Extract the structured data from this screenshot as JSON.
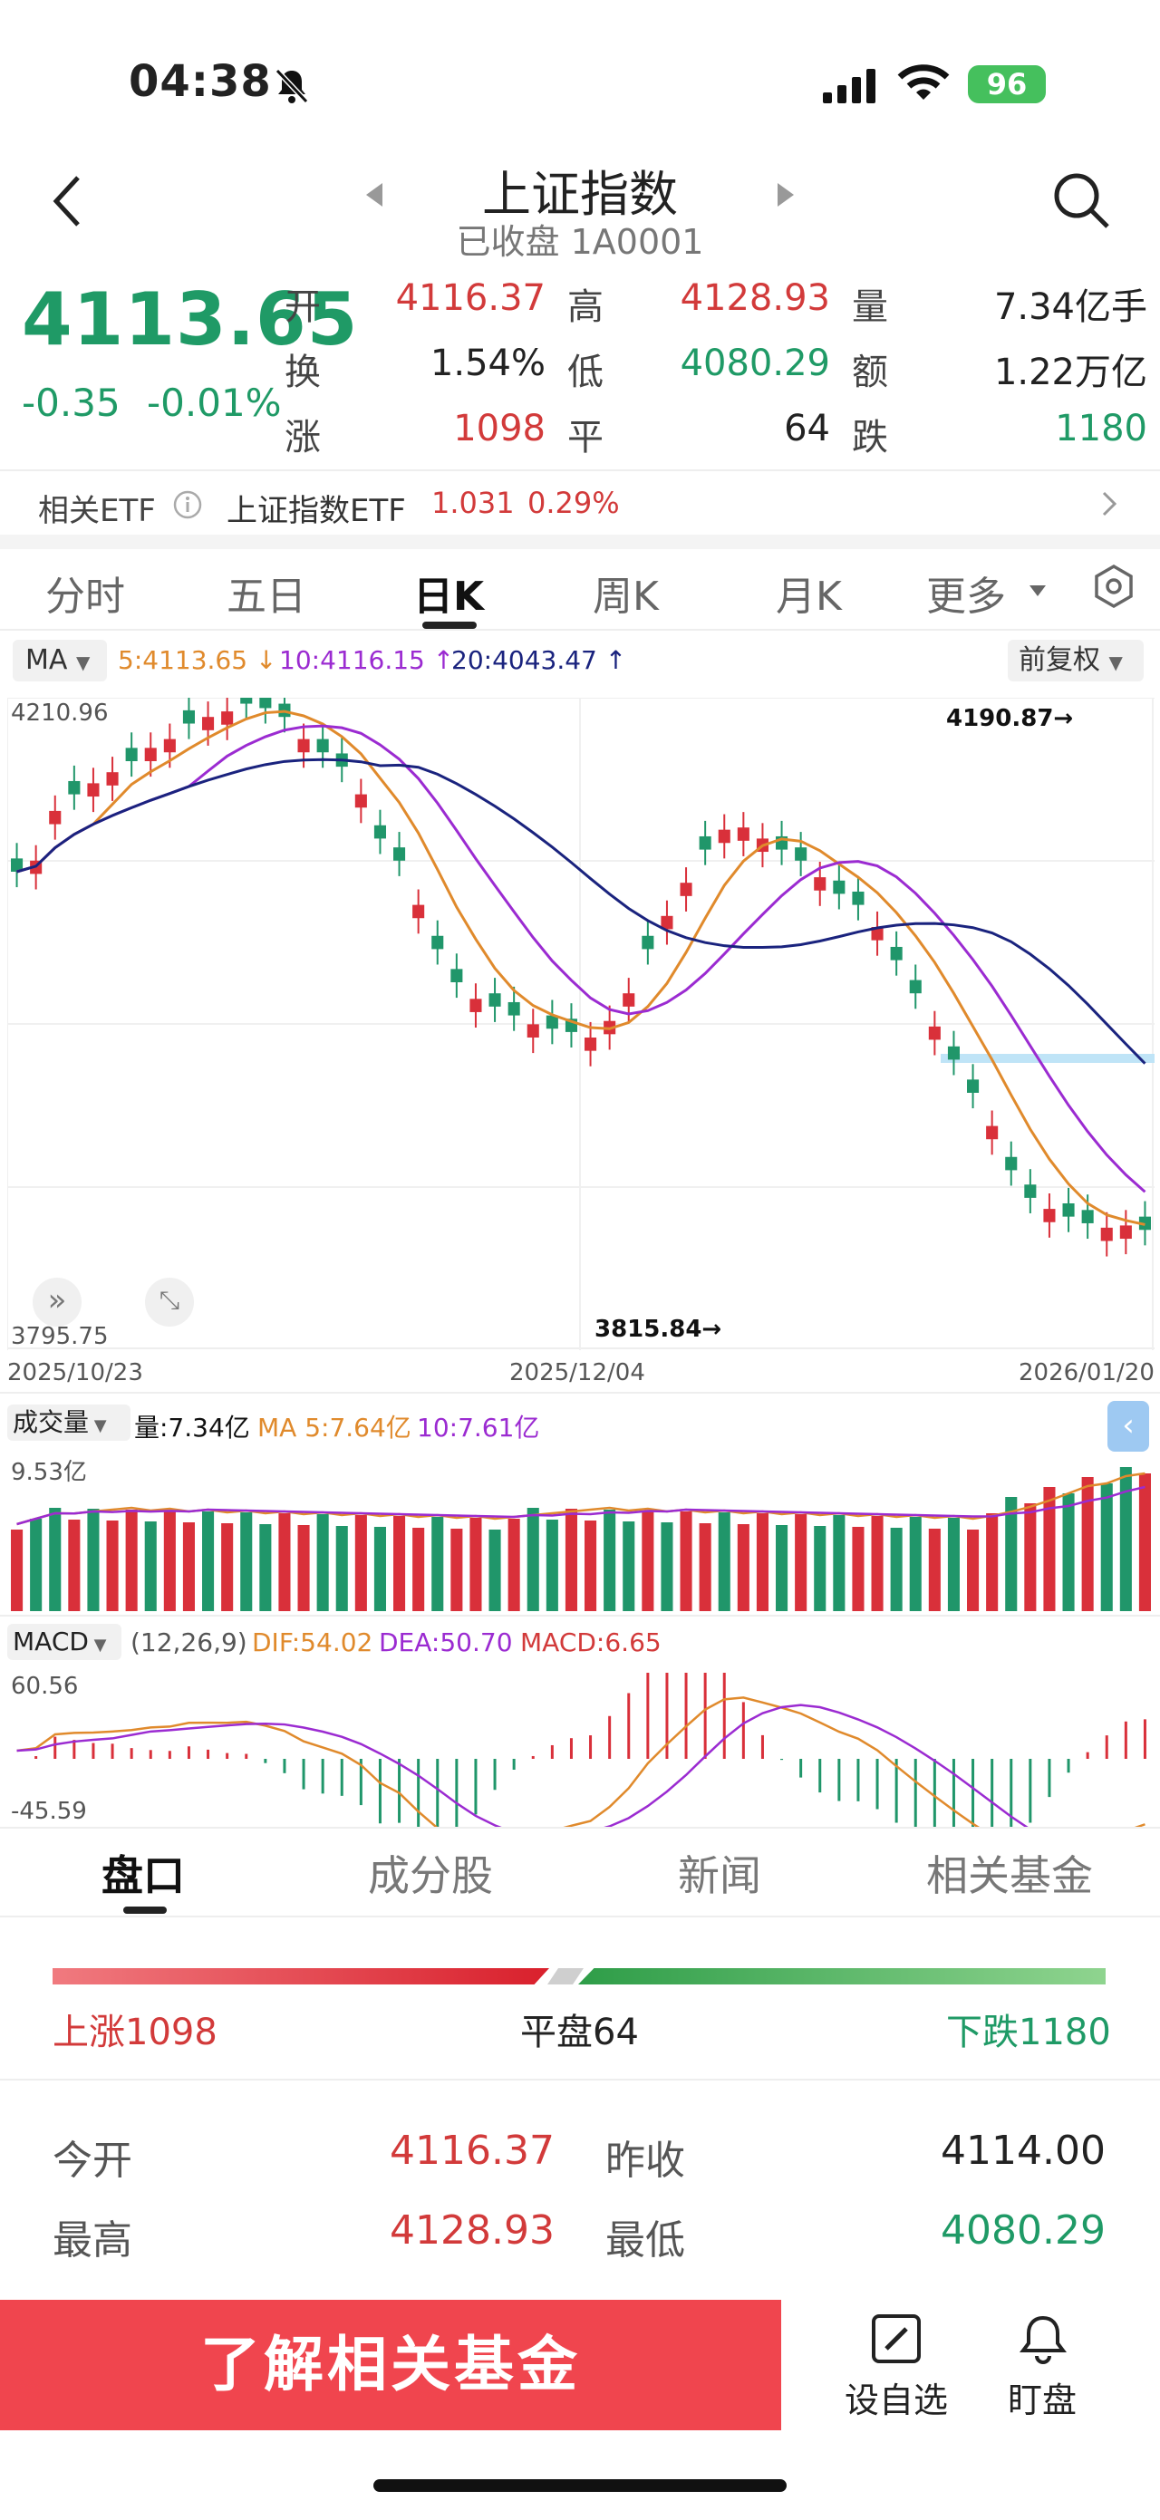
{
  "status_bar": {
    "time": "04:38",
    "battery": "96"
  },
  "header": {
    "title": "上证指数",
    "subtitle": "已收盘 1A0001"
  },
  "quote": {
    "price": "4113.65",
    "change": "-0.35",
    "change_pct": "-0.01%",
    "open_label": "开",
    "open": "4116.37",
    "high_label": "高",
    "high": "4128.93",
    "volume_label": "量",
    "volume": "7.34亿手",
    "turnover_label": "换",
    "turnover": "1.54%",
    "low_label": "低",
    "low": "4080.29",
    "amount_label": "额",
    "amount": "1.22万亿",
    "up_label": "涨",
    "up": "1098",
    "flat_label": "平",
    "flat": "64",
    "down_label": "跌",
    "down": "1180"
  },
  "etf": {
    "label": "相关ETF",
    "name": "上证指数ETF",
    "price": "1.031",
    "pct": "0.29%"
  },
  "ktabs": [
    "分时",
    "五日",
    "日K",
    "周K",
    "月K",
    "更多"
  ],
  "ma_legend": {
    "selector": "MA",
    "ma5": "5:4113.65",
    "ma10": "10:4116.15",
    "ma20": "20:4043.47",
    "fq": "前复权"
  },
  "kchart": {
    "top_value": "4210.96",
    "bottom_value": "3795.75",
    "high_mark": "4190.87",
    "low_mark": "3815.84",
    "dates": [
      "2025/10/23",
      "2025/12/04",
      "2026/01/20"
    ]
  },
  "volume": {
    "selector": "成交量",
    "vol": "量:7.34亿",
    "ma5": "MA 5:7.64亿",
    "ma10": "10:7.61亿",
    "top": "9.53亿"
  },
  "macd": {
    "selector": "MACD",
    "params": "(12,26,9)",
    "dif": "DIF:54.02",
    "dea": "DEA:50.70",
    "macd": "MACD:6.65",
    "top": "60.56",
    "bottom": "-45.59"
  },
  "btabs": [
    "盘口",
    "成分股",
    "新闻",
    "相关基金"
  ],
  "breadth": {
    "up": "上涨1098",
    "flat": "平盘64",
    "down": "下跌1180"
  },
  "detail": {
    "open_label": "今开",
    "open": "4116.37",
    "prev_label": "昨收",
    "prev": "4114.00",
    "high_label": "最高",
    "high": "4128.93",
    "low_label": "最低",
    "low": "4080.29"
  },
  "bottom": {
    "cta": "了解相关基金",
    "watch": "设自选",
    "monitor": "盯盘"
  },
  "colors": {
    "red": "#d23a3a",
    "green": "#1f9a66"
  }
}
